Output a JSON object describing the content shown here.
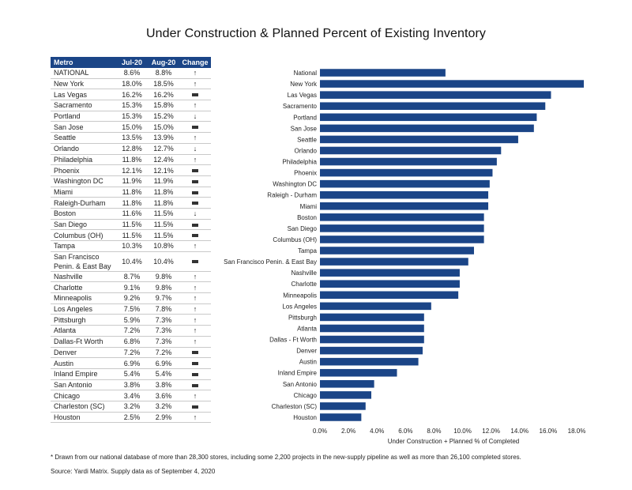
{
  "title": "Under Construction & Planned Percent of Existing Inventory",
  "table": {
    "headers": [
      "Metro",
      "Jul-20",
      "Aug-20",
      "Change"
    ],
    "rows": [
      {
        "metro": "NATIONAL",
        "jul": "8.6%",
        "aug": "8.8%",
        "change": "up"
      },
      {
        "metro": "New York",
        "jul": "18.0%",
        "aug": "18.5%",
        "change": "up"
      },
      {
        "metro": "Las Vegas",
        "jul": "16.2%",
        "aug": "16.2%",
        "change": "flat"
      },
      {
        "metro": "Sacramento",
        "jul": "15.3%",
        "aug": "15.8%",
        "change": "up"
      },
      {
        "metro": "Portland",
        "jul": "15.3%",
        "aug": "15.2%",
        "change": "down"
      },
      {
        "metro": "San Jose",
        "jul": "15.0%",
        "aug": "15.0%",
        "change": "flat"
      },
      {
        "metro": "Seattle",
        "jul": "13.5%",
        "aug": "13.9%",
        "change": "up"
      },
      {
        "metro": "Orlando",
        "jul": "12.8%",
        "aug": "12.7%",
        "change": "down"
      },
      {
        "metro": "Philadelphia",
        "jul": "11.8%",
        "aug": "12.4%",
        "change": "up"
      },
      {
        "metro": "Phoenix",
        "jul": "12.1%",
        "aug": "12.1%",
        "change": "flat"
      },
      {
        "metro": "Washington DC",
        "jul": "11.9%",
        "aug": "11.9%",
        "change": "flat"
      },
      {
        "metro": "Miami",
        "jul": "11.8%",
        "aug": "11.8%",
        "change": "flat"
      },
      {
        "metro": "Raleigh-Durham",
        "jul": "11.8%",
        "aug": "11.8%",
        "change": "flat"
      },
      {
        "metro": "Boston",
        "jul": "11.6%",
        "aug": "11.5%",
        "change": "down"
      },
      {
        "metro": "San Diego",
        "jul": "11.5%",
        "aug": "11.5%",
        "change": "flat"
      },
      {
        "metro": "Columbus (OH)",
        "jul": "11.5%",
        "aug": "11.5%",
        "change": "flat"
      },
      {
        "metro": "Tampa",
        "jul": "10.3%",
        "aug": "10.8%",
        "change": "up"
      },
      {
        "metro": "San Francisco Penin. & East Bay",
        "jul": "10.4%",
        "aug": "10.4%",
        "change": "flat"
      },
      {
        "metro": "Nashville",
        "jul": "8.7%",
        "aug": "9.8%",
        "change": "up"
      },
      {
        "metro": "Charlotte",
        "jul": "9.1%",
        "aug": "9.8%",
        "change": "up"
      },
      {
        "metro": "Minneapolis",
        "jul": "9.2%",
        "aug": "9.7%",
        "change": "up"
      },
      {
        "metro": "Los Angeles",
        "jul": "7.5%",
        "aug": "7.8%",
        "change": "up"
      },
      {
        "metro": "Pittsburgh",
        "jul": "5.9%",
        "aug": "7.3%",
        "change": "up"
      },
      {
        "metro": "Atlanta",
        "jul": "7.2%",
        "aug": "7.3%",
        "change": "up"
      },
      {
        "metro": "Dallas-Ft Worth",
        "jul": "6.8%",
        "aug": "7.3%",
        "change": "up"
      },
      {
        "metro": "Denver",
        "jul": "7.2%",
        "aug": "7.2%",
        "change": "flat"
      },
      {
        "metro": "Austin",
        "jul": "6.9%",
        "aug": "6.9%",
        "change": "flat"
      },
      {
        "metro": "Inland Empire",
        "jul": "5.4%",
        "aug": "5.4%",
        "change": "flat"
      },
      {
        "metro": "San Antonio",
        "jul": "3.8%",
        "aug": "3.8%",
        "change": "flat"
      },
      {
        "metro": "Chicago",
        "jul": "3.4%",
        "aug": "3.6%",
        "change": "up"
      },
      {
        "metro": "Charleston (SC)",
        "jul": "3.2%",
        "aug": "3.2%",
        "change": "flat"
      },
      {
        "metro": "Houston",
        "jul": "2.5%",
        "aug": "2.9%",
        "change": "up"
      }
    ]
  },
  "chart_data": {
    "type": "bar",
    "orientation": "horizontal",
    "categories": [
      "National",
      "New York",
      "Las Vegas",
      "Sacramento",
      "Portland",
      "San Jose",
      "Seattle",
      "Orlando",
      "Philadelphia",
      "Phoenix",
      "Washington DC",
      "Raleigh - Durham",
      "Miami",
      "Boston",
      "San Diego",
      "Columbus (OH)",
      "Tampa",
      "San Francisco Penin. & East Bay",
      "Nashville",
      "Charlotte",
      "Minneapolis",
      "Los Angeles",
      "Pittsburgh",
      "Atlanta",
      "Dallas - Ft Worth",
      "Denver",
      "Austin",
      "Inland Empire",
      "San Antonio",
      "Chicago",
      "Charleston (SC)",
      "Houston"
    ],
    "values": [
      8.8,
      18.5,
      16.2,
      15.8,
      15.2,
      15.0,
      13.9,
      12.7,
      12.4,
      12.1,
      11.9,
      11.8,
      11.8,
      11.5,
      11.5,
      11.5,
      10.8,
      10.4,
      9.8,
      9.8,
      9.7,
      7.8,
      7.3,
      7.3,
      7.3,
      7.2,
      6.9,
      5.4,
      3.8,
      3.6,
      3.2,
      2.9
    ],
    "xlabel": "Under Construction + Planned % of Completed",
    "ylabel": "",
    "xlim": [
      0,
      18.5
    ],
    "xticks": [
      "0.0%",
      "2.0%",
      "4.0%",
      "6.0%",
      "8.0%",
      "10.0%",
      "12.0%",
      "14.0%",
      "16.0%",
      "18.0%"
    ],
    "grid": false,
    "color": "#1b4587"
  },
  "footnote": "* Drawn from our national database of more than 28,300 stores, including some 2,200 projects in the new-supply pipeline as well as more than 26,100 completed stores.",
  "source": "Source: Yardi Matrix. Supply data as of September 4, 2020"
}
